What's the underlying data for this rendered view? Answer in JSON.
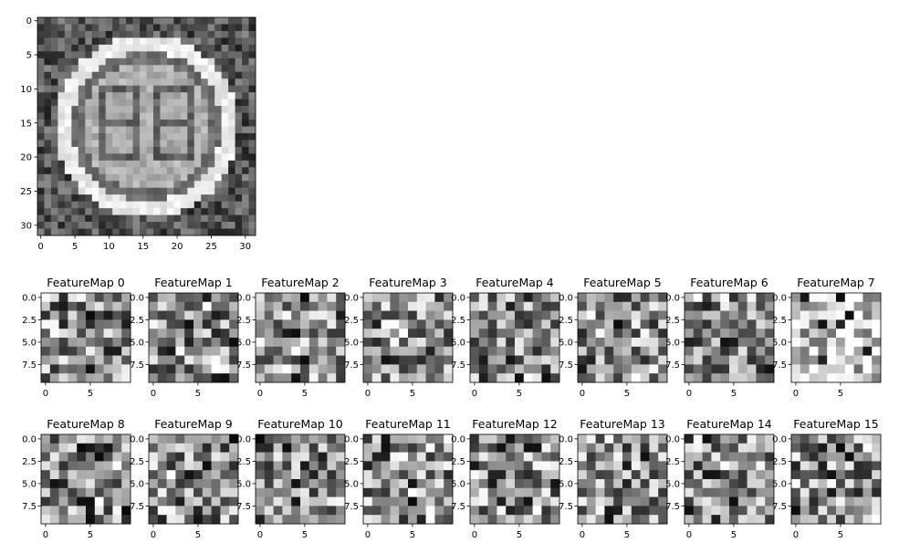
{
  "chart_data": [
    {
      "type": "heatmap",
      "title": "",
      "description_colormap": "gray",
      "grid_size": 32,
      "xlim": [
        0,
        31
      ],
      "ylim": [
        31,
        0
      ],
      "x_ticks": [
        "0",
        "5",
        "10",
        "15",
        "20",
        "25",
        "30"
      ],
      "y_ticks": [
        "0",
        "5",
        "10",
        "15",
        "20",
        "25",
        "30"
      ]
    },
    {
      "type": "heatmap",
      "grid_size": 10,
      "x_ticks": [
        "0",
        "5"
      ],
      "y_ticks": [
        "0.0",
        "2.5",
        "5.0",
        "7.5"
      ],
      "feature_maps": [
        {
          "title": "FeatureMap 0"
        },
        {
          "title": "FeatureMap 1"
        },
        {
          "title": "FeatureMap 2"
        },
        {
          "title": "FeatureMap 3"
        },
        {
          "title": "FeatureMap 4"
        },
        {
          "title": "FeatureMap 5"
        },
        {
          "title": "FeatureMap 6"
        },
        {
          "title": "FeatureMap 7"
        },
        {
          "title": "FeatureMap 8"
        },
        {
          "title": "FeatureMap 9"
        },
        {
          "title": "FeatureMap 10"
        },
        {
          "title": "FeatureMap 11"
        },
        {
          "title": "FeatureMap 12"
        },
        {
          "title": "FeatureMap 13"
        },
        {
          "title": "FeatureMap 14"
        },
        {
          "title": "FeatureMap 15"
        }
      ]
    }
  ]
}
